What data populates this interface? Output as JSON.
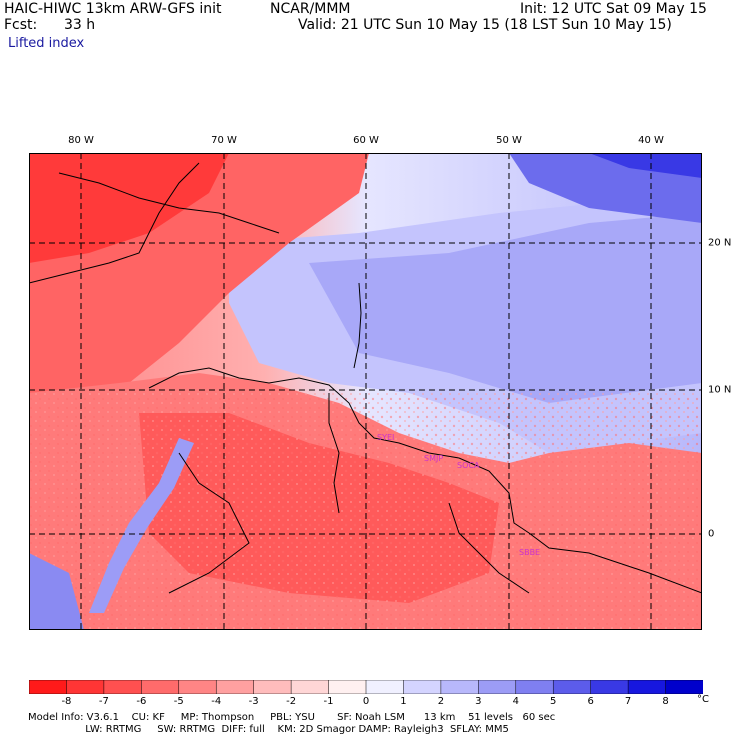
{
  "header": {
    "model_title": "HAIC-HIWC 13km ARW-GFS init",
    "org": "NCAR/MMM",
    "init": "Init: 12 UTC Sat 09 May 15",
    "fcst_label": "Fcst:",
    "fcst_value": "33 h",
    "valid": "Valid: 21 UTC Sun 10 May 15 (18 LST Sun 10 May 15)",
    "field_name": "Lifted index"
  },
  "map": {
    "lon_labels": [
      "80 W",
      "70 W",
      "60 W",
      "50 W",
      "40 W"
    ],
    "lat_labels": [
      "20 N",
      "10 N",
      "0"
    ],
    "station_labels": [
      "SYEI",
      "SMJP",
      "SOCA",
      "SBBE"
    ],
    "colors": {
      "station_label": "#cc33cc",
      "gridline": "#000000"
    }
  },
  "colorbar": {
    "labels": [
      "-8",
      "-7",
      "-6",
      "-5",
      "-4",
      "-3",
      "-2",
      "-1",
      "0",
      "1",
      "2",
      "3",
      "4",
      "5",
      "6",
      "7",
      "8"
    ],
    "unit": "°C",
    "colors": [
      "#ff1a1a",
      "#ff3535",
      "#ff5050",
      "#ff6b6b",
      "#ff8585",
      "#ffa0a0",
      "#ffbcbc",
      "#ffd6d6",
      "#fff0f0",
      "#f0f0ff",
      "#d4d4ff",
      "#b8b8fb",
      "#9c9cf6",
      "#7f7ff1",
      "#5c5ceb",
      "#3939e5",
      "#1717df",
      "#0000cc"
    ]
  },
  "footer": {
    "line1": "Model Info: V3.6.1    CU: KF     MP: Thompson     PBL: YSU       SF: Noah LSM      13 km    51 levels   60 sec",
    "line2": "                  LW: RRTMG     SW: RRTMG  DIFF: full    KM: 2D Smagor DAMP: Rayleigh3  SFLAY: MM5"
  }
}
